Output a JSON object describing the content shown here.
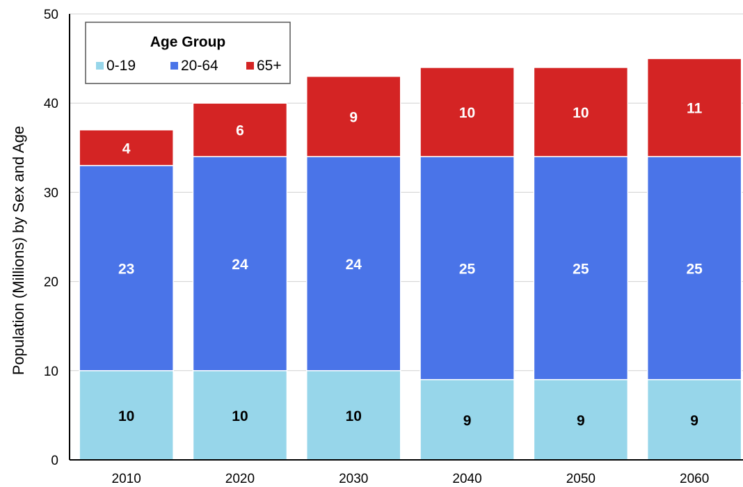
{
  "chart_data": {
    "type": "bar",
    "stacked": true,
    "categories": [
      "2010",
      "2020",
      "2030",
      "2040",
      "2050",
      "2060"
    ],
    "series": [
      {
        "name": "0-19",
        "values": [
          10,
          10,
          10,
          9,
          9,
          9
        ],
        "color": "#97d6ea",
        "label_color": "#000000"
      },
      {
        "name": "20-64",
        "values": [
          23,
          24,
          24,
          25,
          25,
          25
        ],
        "color": "#4a74e8",
        "label_color": "#ffffff"
      },
      {
        "name": "65+",
        "values": [
          4,
          6,
          9,
          10,
          10,
          11
        ],
        "color": "#d42424",
        "label_color": "#ffffff"
      }
    ],
    "ylabel": "Population (Millions) by Sex and Age",
    "xlabel": "",
    "ylim": [
      0,
      50
    ],
    "yticks": [
      "0",
      "10",
      "20",
      "30",
      "40",
      "50"
    ],
    "grid": true,
    "legend": {
      "title": "Age Group",
      "placement": "top-left"
    }
  }
}
